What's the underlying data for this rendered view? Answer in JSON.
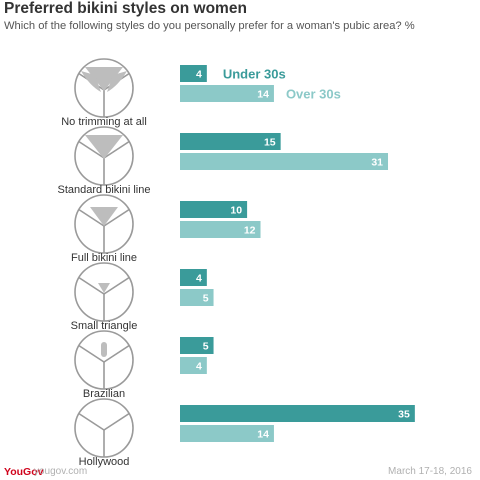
{
  "header": {
    "title": "Preferred bikini styles on women",
    "subtitle": "Which of the following styles do you personally prefer for a woman's pubic area? %"
  },
  "footer": {
    "brand": "YouGov",
    "site": "yougov.com",
    "date": "March 17-18, 2016"
  },
  "colors": {
    "under_30s": "#3a9b9a",
    "over_30s": "#8cc9c8",
    "icon_outline": "#9a9a9a",
    "icon_fill": "#bdbdbd"
  },
  "chart_data": {
    "type": "bar",
    "orientation": "horizontal",
    "title": "Preferred bikini styles on women",
    "subtitle": "Which of the following styles do you personally prefer for a woman's pubic area? %",
    "categories": [
      "No trimming at all",
      "Standard bikini line",
      "Full bikini line",
      "Small triangle",
      "Brazilian",
      "Hollywood"
    ],
    "series": [
      {
        "name": "Under 30s",
        "values": [
          4,
          15,
          10,
          4,
          5,
          35
        ]
      },
      {
        "name": "Over 30s",
        "values": [
          14,
          31,
          12,
          5,
          4,
          14
        ]
      }
    ],
    "icons": [
      "no-trimming-icon",
      "standard-bikini-icon",
      "full-bikini-icon",
      "small-triangle-icon",
      "brazilian-icon",
      "hollywood-icon"
    ],
    "legend_placement": "inside, next to first category bars",
    "grid": false,
    "xlim": [
      0,
      36
    ]
  }
}
